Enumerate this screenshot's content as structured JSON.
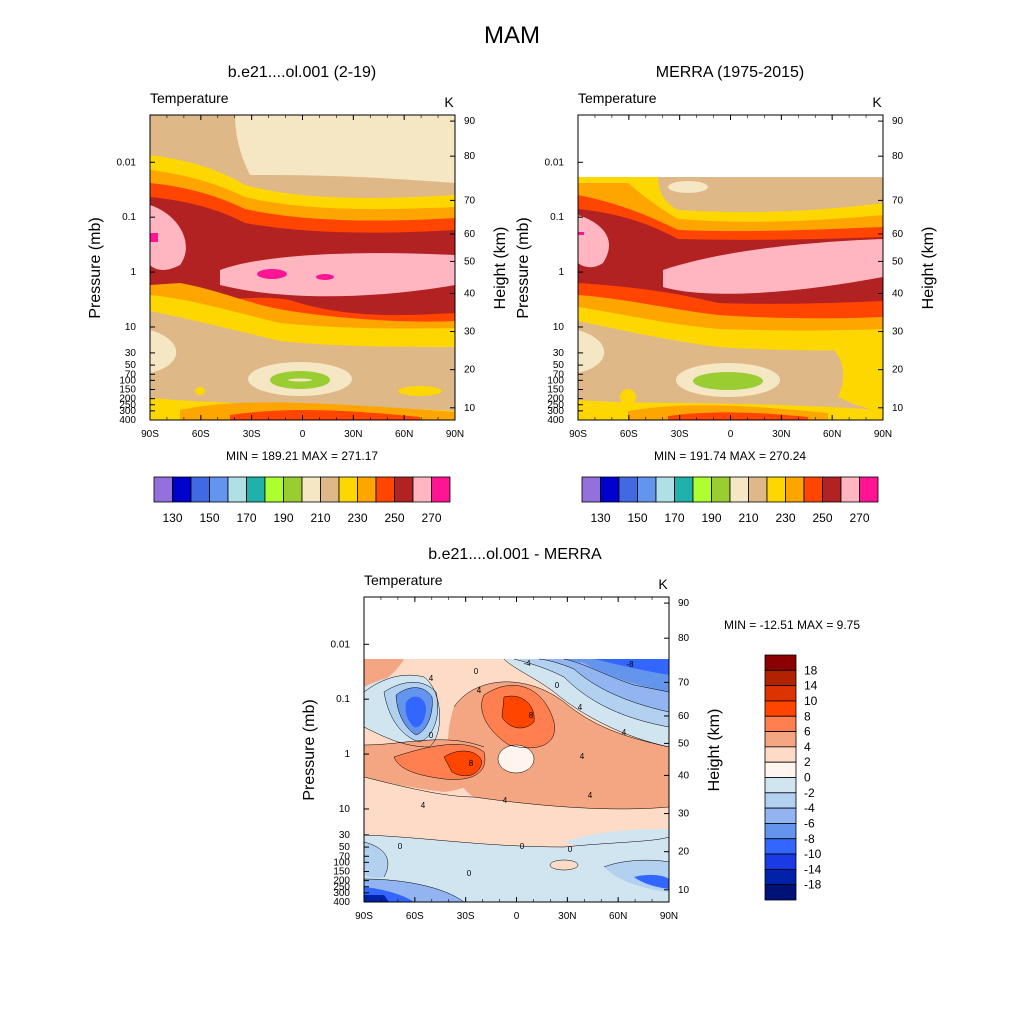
{
  "figure": {
    "title": "MAM"
  },
  "chart_data": [
    {
      "type": "heatmap",
      "title": "b.e21....ol.001 (2-19)",
      "left_label": "Temperature",
      "right_label": "K",
      "xlabel": "",
      "ylabel": "Pressure (mb)",
      "y2label": "Height (km)",
      "x_ticks": [
        "90S",
        "60S",
        "30S",
        "0",
        "30N",
        "60N",
        "90N"
      ],
      "y_ticks": [
        "0.01",
        "0.1",
        "1",
        "10",
        "30",
        "50",
        "70",
        "100",
        "150",
        "200",
        "250",
        "300",
        "400"
      ],
      "height_ticks": [
        "10",
        "20",
        "30",
        "40",
        "50",
        "60",
        "70",
        "80",
        "90"
      ],
      "stats": "MIN = 189.21   MAX = 271.17",
      "colorbar_labels": [
        "130",
        "150",
        "170",
        "190",
        "210",
        "230",
        "250",
        "270"
      ],
      "colorbar_colors": [
        "#9370db",
        "#0000cd",
        "#4169e1",
        "#6495ed",
        "#b0e0e6",
        "#20b2aa",
        "#adff2f",
        "#9acd32",
        "#f5e6c4",
        "#deb887",
        "#ffd700",
        "#ffa500",
        "#ff4500",
        "#b22222",
        "#ffb6c1",
        "#ff1493"
      ]
    },
    {
      "type": "heatmap",
      "title": "MERRA (1975-2015)",
      "left_label": "Temperature",
      "right_label": "K",
      "xlabel": "",
      "ylabel": "Pressure (mb)",
      "y2label": "Height (km)",
      "x_ticks": [
        "90S",
        "60S",
        "30S",
        "0",
        "30N",
        "60N",
        "90N"
      ],
      "y_ticks": [
        "0.01",
        "0.1",
        "1",
        "10",
        "30",
        "50",
        "70",
        "100",
        "150",
        "200",
        "250",
        "300",
        "400"
      ],
      "height_ticks": [
        "10",
        "20",
        "30",
        "40",
        "50",
        "60",
        "70",
        "80",
        "90"
      ],
      "stats": "MIN = 191.74   MAX = 270.24",
      "colorbar_labels": [
        "130",
        "150",
        "170",
        "190",
        "210",
        "230",
        "250",
        "270"
      ],
      "colorbar_colors": [
        "#9370db",
        "#0000cd",
        "#4169e1",
        "#6495ed",
        "#b0e0e6",
        "#20b2aa",
        "#adff2f",
        "#9acd32",
        "#f5e6c4",
        "#deb887",
        "#ffd700",
        "#ffa500",
        "#ff4500",
        "#b22222",
        "#ffb6c1",
        "#ff1493"
      ]
    },
    {
      "type": "heatmap",
      "title": "b.e21....ol.001 - MERRA",
      "left_label": "Temperature",
      "right_label": "K",
      "xlabel": "",
      "ylabel": "Pressure (mb)",
      "y2label": "Height (km)",
      "x_ticks": [
        "90S",
        "60S",
        "30S",
        "0",
        "30N",
        "60N",
        "90N"
      ],
      "y_ticks": [
        "0.01",
        "0.1",
        "1",
        "10",
        "30",
        "50",
        "70",
        "100",
        "150",
        "200",
        "250",
        "300",
        "400"
      ],
      "height_ticks": [
        "10",
        "20",
        "30",
        "40",
        "50",
        "60",
        "70",
        "80",
        "90"
      ],
      "stats": "MIN = -12.51  MAX =   9.75",
      "colorbar_labels": [
        "18",
        "14",
        "10",
        "8",
        "6",
        "4",
        "2",
        "0",
        "-2",
        "-4",
        "-6",
        "-8",
        "-10",
        "-14",
        "-18"
      ],
      "colorbar_colors": [
        "#8b0000",
        "#b22200",
        "#dd3300",
        "#ff4500",
        "#ff7f50",
        "#f4a582",
        "#fddbc7",
        "#fff5ee",
        "#d1e5f0",
        "#b2d0f0",
        "#92b4f0",
        "#6495ed",
        "#3366ff",
        "#1a3ae6",
        "#0022aa",
        "#001177"
      ],
      "contour_labels": [
        "-4",
        "0",
        "4",
        "-8",
        "0",
        "4",
        "4",
        "8",
        "4",
        "0",
        "4",
        "8",
        "4",
        "4",
        "4",
        "0",
        "0",
        "0",
        "0"
      ]
    }
  ]
}
